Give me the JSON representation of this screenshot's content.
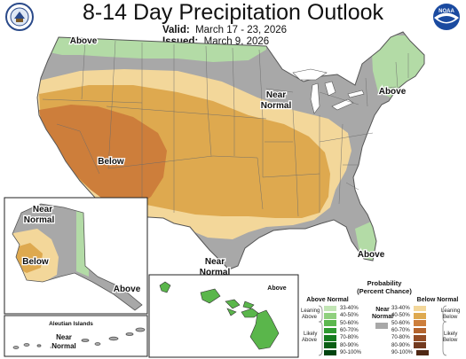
{
  "title": "8-14 Day Precipitation Outlook",
  "valid": {
    "label": "Valid:",
    "value": "March 17 - 23, 2026"
  },
  "issued": {
    "label": "Issued:",
    "value": "March 9, 2026"
  },
  "logos": {
    "left": "noaa-seal-logo",
    "right": "noaa-logo",
    "right_text": "NOAA"
  },
  "labels": {
    "above_nw": "Above",
    "above_ne": "Above",
    "near_normal_mw": [
      "Near",
      "Normal"
    ],
    "below_sw": "Below",
    "above_fl": "Above",
    "near_normal_tx": [
      "Near",
      "Normal"
    ],
    "ak_near_normal": [
      "Near",
      "Normal"
    ],
    "ak_below": "Below",
    "ak_above": "Above",
    "aleutian_title": "Aleutian Islands",
    "aleutian_near_normal": [
      "Near",
      "Normal"
    ],
    "hi_above": "Above"
  },
  "colors": {
    "near_normal": "#a8a8a8",
    "above_33_40": "#b3dba6",
    "below_33_40": "#f3d79a",
    "below_40_50": "#dea94f",
    "below_50_60": "#cd7e3b",
    "below_60_70": "#b4642e",
    "hawaii_above": "#5ab64b",
    "water": "#ffffff",
    "land_outline": "#555555"
  },
  "legend": {
    "title_line1": "Probability",
    "title_line2": "(Percent Chance)",
    "above_header": "Above Normal",
    "below_header": "Below Normal",
    "near_header": [
      "Near",
      "Normal"
    ],
    "leaning_above": [
      "Leaning",
      "Above"
    ],
    "likely_above": [
      "Likely",
      "Above"
    ],
    "leaning_below": [
      "Leaning",
      "Below"
    ],
    "likely_below": [
      "Likely",
      "Below"
    ],
    "ranges": [
      "33-40%",
      "40-50%",
      "50-60%",
      "60-70%",
      "70-80%",
      "80-90%",
      "90-100%"
    ],
    "above_colors": [
      "#c2e5b5",
      "#8fd07e",
      "#5cb84e",
      "#2f9a31",
      "#157c1f",
      "#0a5e14",
      "#004410"
    ],
    "below_colors": [
      "#f3d79a",
      "#dea94f",
      "#cd7e3b",
      "#b4642e",
      "#944d26",
      "#733a1f",
      "#4f2814"
    ],
    "near_color": "#a8a8a8"
  }
}
